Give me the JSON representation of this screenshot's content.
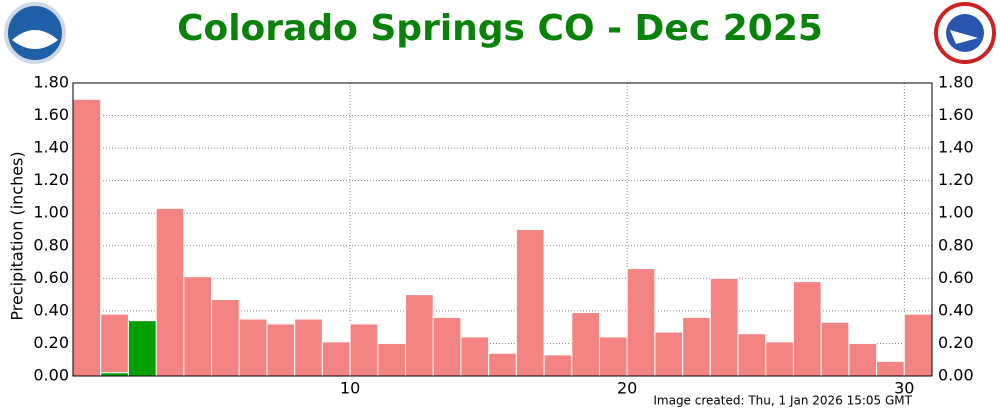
{
  "chart_data": {
    "type": "bar",
    "title": "Colorado Springs CO - Dec 2025",
    "y_label": "Precipitation (inches)",
    "footer": "Image created: Thu, 1 Jan 2026 15:05 GMT",
    "x": [
      1,
      2,
      3,
      4,
      5,
      6,
      7,
      8,
      9,
      10,
      11,
      12,
      13,
      14,
      15,
      16,
      17,
      18,
      19,
      20,
      21,
      22,
      23,
      24,
      25,
      26,
      27,
      28,
      29,
      30,
      31
    ],
    "series": [
      {
        "color": "#f48484",
        "values": [
          1.7,
          0.38,
          0.34,
          1.03,
          0.61,
          0.47,
          0.35,
          0.32,
          0.35,
          0.21,
          0.32,
          0.2,
          0.5,
          0.36,
          0.24,
          0.14,
          0.9,
          0.13,
          0.39,
          0.24,
          0.66,
          0.27,
          0.36,
          0.6,
          0.26,
          0.21,
          0.58,
          0.33,
          0.2,
          0.09,
          0.38
        ]
      },
      {
        "color": "#00a000",
        "values": [
          0,
          0.02,
          0.34,
          0,
          0,
          0,
          0,
          0,
          0,
          0,
          0,
          0,
          0,
          0,
          0,
          0,
          0,
          0,
          0,
          0,
          0,
          0,
          0,
          0,
          0,
          0,
          0,
          0,
          0,
          0,
          0
        ]
      }
    ],
    "xlim": [
      0,
      31
    ],
    "xticks": [
      10,
      20,
      30
    ],
    "ylim": [
      0,
      1.8
    ],
    "yticks": [
      {
        "value": 0,
        "label": "0.00"
      },
      {
        "value": 0.2,
        "label": "0.20"
      },
      {
        "value": 0.4,
        "label": "0.40"
      },
      {
        "value": 0.6,
        "label": "0.60"
      },
      {
        "value": 0.8,
        "label": "0.80"
      },
      {
        "value": 1,
        "label": "1.00"
      },
      {
        "value": 1.2,
        "label": "1.20"
      },
      {
        "value": 1.4,
        "label": "1.40"
      },
      {
        "value": 1.6,
        "label": "1.60"
      },
      {
        "value": 1.8,
        "label": "1.80"
      }
    ],
    "grid": true
  }
}
